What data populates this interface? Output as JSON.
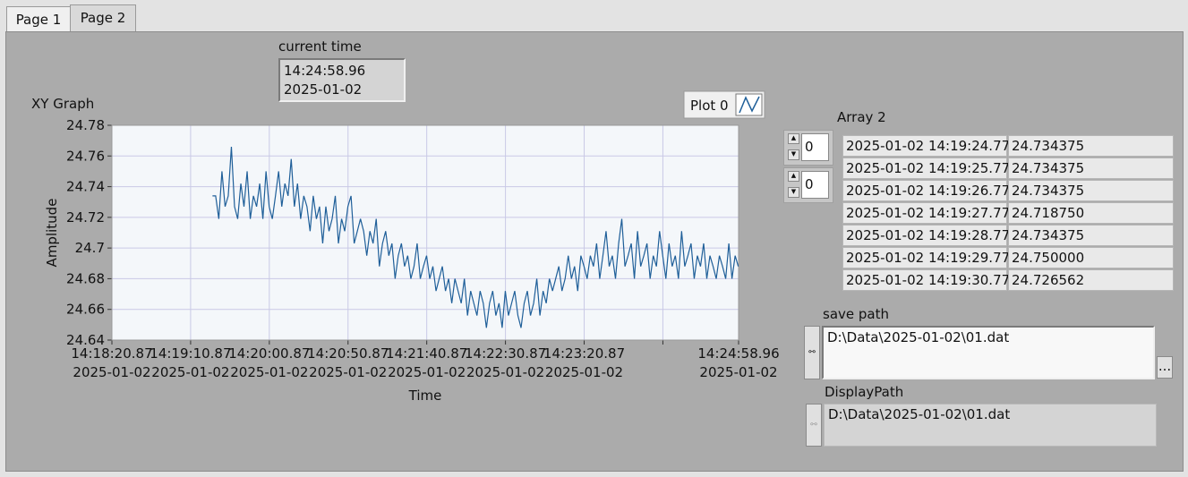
{
  "tabs": [
    "Page 1",
    "Page 2"
  ],
  "current_time": {
    "label": "current time",
    "lines": [
      "14:24:58.96",
      "2025-01-02"
    ]
  },
  "chart_data": {
    "type": "line",
    "title": "XY Graph",
    "x_label": "Time",
    "y_label": "Amplitude",
    "x": [
      51564.77,
      51566.77,
      51568.77,
      51570.77,
      51572.77,
      51574.77,
      51576.77,
      51578.77,
      51580.77,
      51582.77,
      51584.77,
      51586.77,
      51588.77,
      51590.77,
      51592.77,
      51594.77,
      51596.77,
      51598.77,
      51600.77,
      51602.77,
      51604.77,
      51606.77,
      51608.77,
      51610.77,
      51612.77,
      51614.77,
      51616.77,
      51618.77,
      51620.77,
      51622.77,
      51624.77,
      51626.77,
      51628.77,
      51630.77,
      51632.77,
      51634.77,
      51636.77,
      51638.77,
      51640.77,
      51642.77,
      51644.77,
      51646.77,
      51648.77,
      51650.77,
      51652.77,
      51654.77,
      51656.77,
      51658.77,
      51660.77,
      51662.77,
      51664.77,
      51666.77,
      51668.77,
      51670.77,
      51672.77,
      51674.77,
      51676.77,
      51678.77,
      51680.77,
      51682.77,
      51684.77,
      51686.77,
      51688.77,
      51690.77,
      51692.77,
      51694.77,
      51696.77,
      51698.77,
      51700.77,
      51702.77,
      51704.77,
      51706.77,
      51708.77,
      51710.77,
      51712.77,
      51714.77,
      51716.77,
      51718.77,
      51720.77,
      51722.77,
      51724.77,
      51726.77,
      51728.77,
      51730.77,
      51732.77,
      51734.77,
      51736.77,
      51738.77,
      51740.77,
      51742.77,
      51744.77,
      51746.77,
      51748.77,
      51750.77,
      51752.77,
      51754.77,
      51756.77,
      51758.77,
      51760.77,
      51762.77,
      51764.77,
      51766.77,
      51768.77,
      51770.77,
      51772.77,
      51774.77,
      51776.77,
      51778.77,
      51780.77,
      51782.77,
      51784.77,
      51786.77,
      51788.77,
      51790.77,
      51792.77,
      51794.77,
      51796.77,
      51798.77,
      51800.77,
      51802.77,
      51804.77,
      51806.77,
      51808.77,
      51810.77,
      51812.77,
      51814.77,
      51816.77,
      51818.77,
      51820.77,
      51822.77,
      51824.77,
      51826.77,
      51828.77,
      51830.77,
      51832.77,
      51834.77,
      51836.77,
      51838.77,
      51840.77,
      51842.77,
      51844.77,
      51846.77,
      51848.77,
      51850.77,
      51852.77,
      51854.77,
      51856.77,
      51858.77,
      51860.77,
      51862.77,
      51864.77,
      51866.77,
      51868.77,
      51870.77,
      51872.77,
      51874.77,
      51876.77,
      51878.77,
      51880.77,
      51882.77,
      51884.77,
      51886.77,
      51888.77,
      51890.77,
      51892.77,
      51894.77,
      51896.77,
      51898.77
    ],
    "series": [
      {
        "name": "Plot 0",
        "color": "#1f5f99",
        "values": [
          24.734,
          24.734,
          24.719,
          24.75,
          24.727,
          24.734,
          24.766,
          24.727,
          24.719,
          24.742,
          24.727,
          24.75,
          24.719,
          24.734,
          24.727,
          24.742,
          24.719,
          24.75,
          24.727,
          24.719,
          24.734,
          24.75,
          24.727,
          24.742,
          24.734,
          24.758,
          24.727,
          24.742,
          24.719,
          24.734,
          24.727,
          24.711,
          24.734,
          24.719,
          24.727,
          24.703,
          24.727,
          24.711,
          24.719,
          24.734,
          24.703,
          24.719,
          24.711,
          24.727,
          24.734,
          24.703,
          24.711,
          24.719,
          24.711,
          24.695,
          24.711,
          24.703,
          24.719,
          24.688,
          24.703,
          24.711,
          24.695,
          24.703,
          24.68,
          24.695,
          24.703,
          24.688,
          24.695,
          24.68,
          24.688,
          24.703,
          24.68,
          24.688,
          24.695,
          24.68,
          24.688,
          24.672,
          24.68,
          24.688,
          24.672,
          24.68,
          24.664,
          24.68,
          24.672,
          24.664,
          24.68,
          24.656,
          24.672,
          24.664,
          24.656,
          24.672,
          24.664,
          24.648,
          24.664,
          24.672,
          24.656,
          24.664,
          24.648,
          24.672,
          24.656,
          24.664,
          24.672,
          24.656,
          24.648,
          24.664,
          24.672,
          24.656,
          24.664,
          24.68,
          24.656,
          24.672,
          24.664,
          24.68,
          24.672,
          24.68,
          24.688,
          24.672,
          24.68,
          24.695,
          24.68,
          24.688,
          24.672,
          24.695,
          24.688,
          24.68,
          24.695,
          24.688,
          24.703,
          24.68,
          24.695,
          24.711,
          24.688,
          24.695,
          24.68,
          24.703,
          24.719,
          24.688,
          24.695,
          24.703,
          24.68,
          24.711,
          24.688,
          24.695,
          24.703,
          24.68,
          24.695,
          24.688,
          24.711,
          24.695,
          24.68,
          24.703,
          24.688,
          24.695,
          24.68,
          24.711,
          24.688,
          24.695,
          24.703,
          24.68,
          24.695,
          24.688,
          24.703,
          24.68,
          24.695,
          24.688,
          24.68,
          24.695,
          24.688,
          24.68,
          24.703,
          24.68,
          24.695,
          24.688
        ]
      }
    ],
    "xlim": [
      51500.87,
      51898.96
    ],
    "xticks": [
      {
        "value": 51500.87,
        "label": "14:18:20.87\n2025-01-02"
      },
      {
        "value": 51550.87,
        "label": "14:19:10.87\n2025-01-02"
      },
      {
        "value": 51600.87,
        "label": "14:20:00.87\n2025-01-02"
      },
      {
        "value": 51650.87,
        "label": "14:20:50.87\n2025-01-02"
      },
      {
        "value": 51700.87,
        "label": "14:21:40.87\n2025-01-02"
      },
      {
        "value": 51750.87,
        "label": "14:22:30.87\n2025-01-02"
      },
      {
        "value": 51800.87,
        "label": "14:23:20.87\n2025-01-02"
      },
      {
        "value": 51850.87,
        "label": null
      },
      {
        "value": 51898.96,
        "label": "14:24:58.96\n2025-01-02"
      }
    ],
    "ylim": [
      24.64,
      24.78
    ],
    "yticks": [
      24.64,
      24.66,
      24.68,
      24.7,
      24.72,
      24.74,
      24.76,
      24.78
    ],
    "grid": true
  },
  "array": {
    "label": "Array 2",
    "indices": [
      "0",
      "0"
    ],
    "rows": [
      [
        "2025-01-02 14:19:24.77",
        "24.734375"
      ],
      [
        "2025-01-02 14:19:25.77",
        "24.734375"
      ],
      [
        "2025-01-02 14:19:26.77",
        "24.734375"
      ],
      [
        "2025-01-02 14:19:27.77",
        "24.718750"
      ],
      [
        "2025-01-02 14:19:28.77",
        "24.734375"
      ],
      [
        "2025-01-02 14:19:29.77",
        "24.750000"
      ],
      [
        "2025-01-02 14:19:30.77",
        "24.726562"
      ]
    ]
  },
  "save_path": {
    "label": "save path",
    "value": "D:\\Data\\2025-01-02\\01.dat",
    "browse_button": "..."
  },
  "display_path": {
    "label": "DisplayPath",
    "value": "D:\\Data\\2025-01-02\\01.dat"
  }
}
